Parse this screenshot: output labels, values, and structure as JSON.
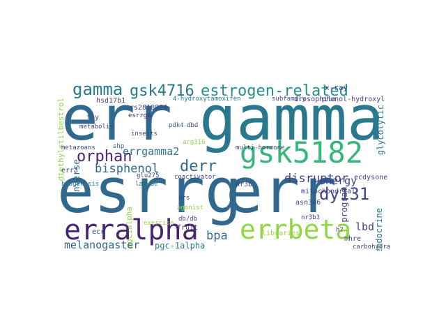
{
  "palette": {
    "dark_purple": "#482475",
    "indigo": "#414487",
    "steel_blue": "#2a788e",
    "slate_blue": "#31688e",
    "teal": "#21918c",
    "green": "#35b779",
    "lime": "#90d743",
    "gray": "#9a9a9a"
  },
  "cloud": {
    "words": [
      "err",
      "gamma",
      "esrrg",
      "err",
      "gsk5182",
      "erralpha",
      "errbeta",
      "gamma",
      "gsk4716",
      "estrogen-related",
      "orphan",
      "derr",
      "dy131",
      "disruptor",
      "bisphenol",
      "melanogaster",
      "bpa",
      "errgamma2",
      "energy",
      "lbd",
      "pgc-1alpha",
      "x-ray",
      "phenol-hydroxyl",
      "drosophila",
      "subfamily",
      "4-hydroxytamoxifen",
      "hsd17b1",
      "rs2818964",
      "esrrga",
      "pdk4",
      "dbd",
      "fly",
      "insects",
      "metabolic",
      "metazoans",
      "multi-hormone",
      "shp",
      "arg316",
      "err3",
      "inverse",
      "glu275",
      "coactivator",
      "nr3b",
      "mitochondrial",
      "ecdysone",
      "program",
      "asn346",
      "mhre",
      "biogenesis",
      "larvae",
      "nrs",
      "agonist",
      "db/db",
      "exercise",
      "fruit",
      "nr3b3",
      "libraries",
      "h7",
      "endocrine",
      "carbohydrate",
      "glycolytic",
      "diethylstilbestrol",
      "ecr",
      "pgc1alpha"
    ]
  }
}
